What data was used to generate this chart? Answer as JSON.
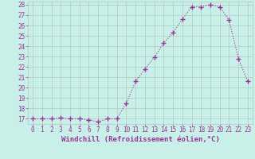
{
  "x": [
    0,
    1,
    2,
    3,
    4,
    5,
    6,
    7,
    8,
    9,
    10,
    11,
    12,
    13,
    14,
    15,
    16,
    17,
    18,
    19,
    20,
    21,
    22,
    23
  ],
  "y": [
    17.0,
    17.0,
    17.0,
    17.1,
    17.0,
    17.0,
    16.9,
    16.7,
    17.0,
    17.0,
    18.5,
    20.6,
    21.8,
    22.9,
    24.3,
    25.3,
    26.6,
    27.8,
    27.8,
    28.0,
    27.8,
    26.5,
    22.8,
    20.6
  ],
  "line_color": "#993399",
  "marker": "+",
  "marker_size": 4,
  "xlabel": "Windchill (Refroidissement éolien,°C)",
  "ylim_min": 16.5,
  "ylim_max": 28.3,
  "yticks": [
    17,
    18,
    19,
    20,
    21,
    22,
    23,
    24,
    25,
    26,
    27,
    28
  ],
  "xticks": [
    0,
    1,
    2,
    3,
    4,
    5,
    6,
    7,
    8,
    9,
    10,
    11,
    12,
    13,
    14,
    15,
    16,
    17,
    18,
    19,
    20,
    21,
    22,
    23
  ],
  "background_color": "#c8f0e8",
  "grid_color": "#b0c8c0",
  "tick_label_color": "#993399",
  "axis_label_color": "#993399",
  "tick_fontsize": 5.5,
  "xlabel_fontsize": 6.5,
  "linewidth": 0.8,
  "line_style": ":"
}
